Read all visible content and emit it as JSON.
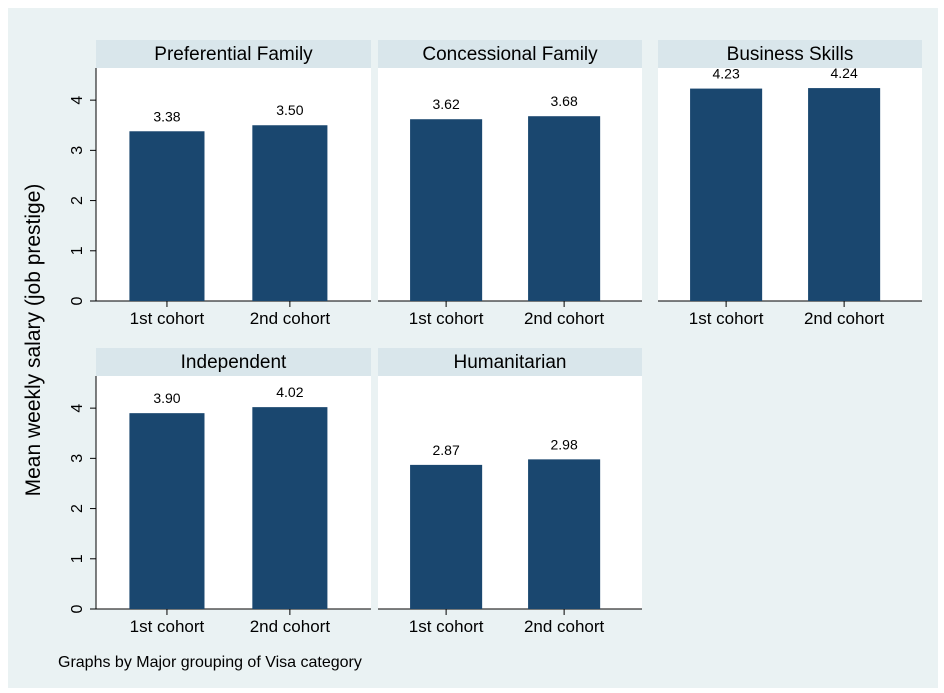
{
  "y_axis": {
    "label": "Mean weekly salary (job prestige)",
    "lim": [
      0,
      4.64
    ],
    "ticks": [
      0,
      1,
      2,
      3,
      4
    ]
  },
  "note": "Graphs by Major grouping of Visa category",
  "chart_data": [
    {
      "type": "bar",
      "title": "Preferential Family",
      "categories": [
        "1st cohort",
        "2nd cohort"
      ],
      "values": [
        3.38,
        3.5
      ],
      "value_labels": [
        "3.38",
        "3.50"
      ],
      "color": "#1a476f"
    },
    {
      "type": "bar",
      "title": "Concessional Family",
      "categories": [
        "1st cohort",
        "2nd cohort"
      ],
      "values": [
        3.62,
        3.68
      ],
      "value_labels": [
        "3.62",
        "3.68"
      ],
      "color": "#1a476f"
    },
    {
      "type": "bar",
      "title": "Business Skills",
      "categories": [
        "1st cohort",
        "2nd cohort"
      ],
      "values": [
        4.23,
        4.24
      ],
      "value_labels": [
        "4.23",
        "4.24"
      ],
      "color": "#1a476f"
    },
    {
      "type": "bar",
      "title": "Independent",
      "categories": [
        "1st cohort",
        "2nd cohort"
      ],
      "values": [
        3.9,
        4.02
      ],
      "value_labels": [
        "3.90",
        "4.02"
      ],
      "color": "#1a476f"
    },
    {
      "type": "bar",
      "title": "Humanitarian",
      "categories": [
        "1st cohort",
        "2nd cohort"
      ],
      "values": [
        2.87,
        2.98
      ],
      "value_labels": [
        "2.87",
        "2.98"
      ],
      "color": "#1a476f"
    }
  ]
}
